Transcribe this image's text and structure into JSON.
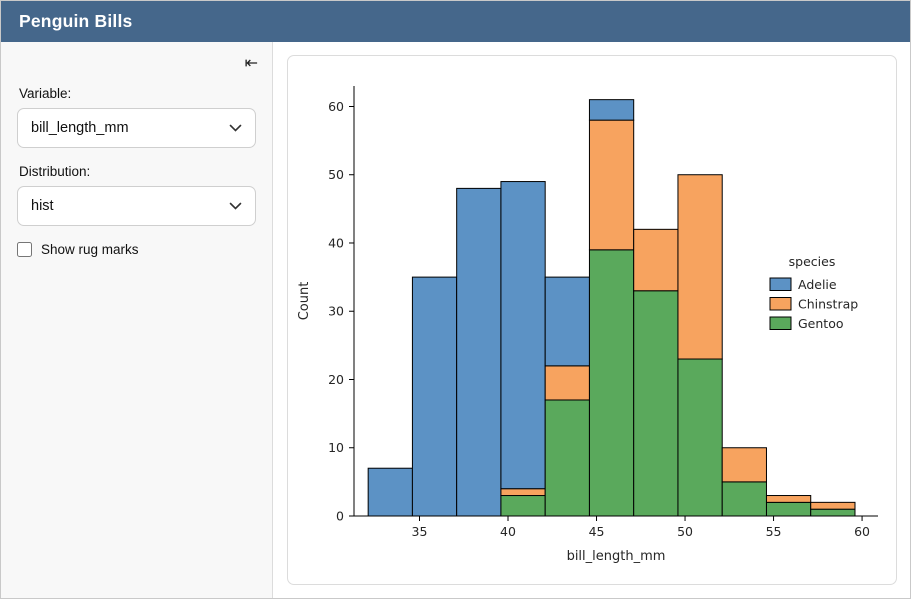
{
  "header": {
    "title": "Penguin Bills"
  },
  "icons": {
    "collapse": "⇤"
  },
  "sidebar": {
    "variable": {
      "label": "Variable:",
      "value": "bill_length_mm"
    },
    "distribution": {
      "label": "Distribution:",
      "value": "hist"
    },
    "rug": {
      "label": "Show rug marks",
      "checked": false
    }
  },
  "chart_data": {
    "type": "bar",
    "subtype": "stacked-histogram",
    "title": "",
    "xlabel": "bill_length_mm",
    "ylabel": "Count",
    "xlim": [
      31.3,
      60.9
    ],
    "ylim": [
      0,
      63
    ],
    "x_ticks": [
      35,
      40,
      45,
      50,
      55,
      60
    ],
    "y_ticks": [
      0,
      10,
      20,
      30,
      40,
      50,
      60
    ],
    "grid": false,
    "bin_edges": [
      32.1,
      34.6,
      37.1,
      39.6,
      42.1,
      44.6,
      47.1,
      49.6,
      52.1,
      54.6,
      57.1,
      59.6
    ],
    "legend": {
      "title": "species",
      "position": "center-right"
    },
    "stack_order_bottom_to_top": [
      "Gentoo",
      "Chinstrap",
      "Adelie"
    ],
    "series": [
      {
        "name": "Adelie",
        "color": "#5c92c5",
        "values": [
          7,
          35,
          48,
          45,
          13,
          3,
          0,
          0,
          0,
          0,
          0
        ]
      },
      {
        "name": "Chinstrap",
        "color": "#f7a35f",
        "values": [
          0,
          0,
          0,
          1,
          5,
          19,
          9,
          27,
          5,
          1,
          1
        ]
      },
      {
        "name": "Gentoo",
        "color": "#5aa95c",
        "values": [
          0,
          0,
          0,
          3,
          17,
          39,
          33,
          23,
          5,
          2,
          1
        ]
      }
    ],
    "bar_edge_color": "#000000"
  }
}
